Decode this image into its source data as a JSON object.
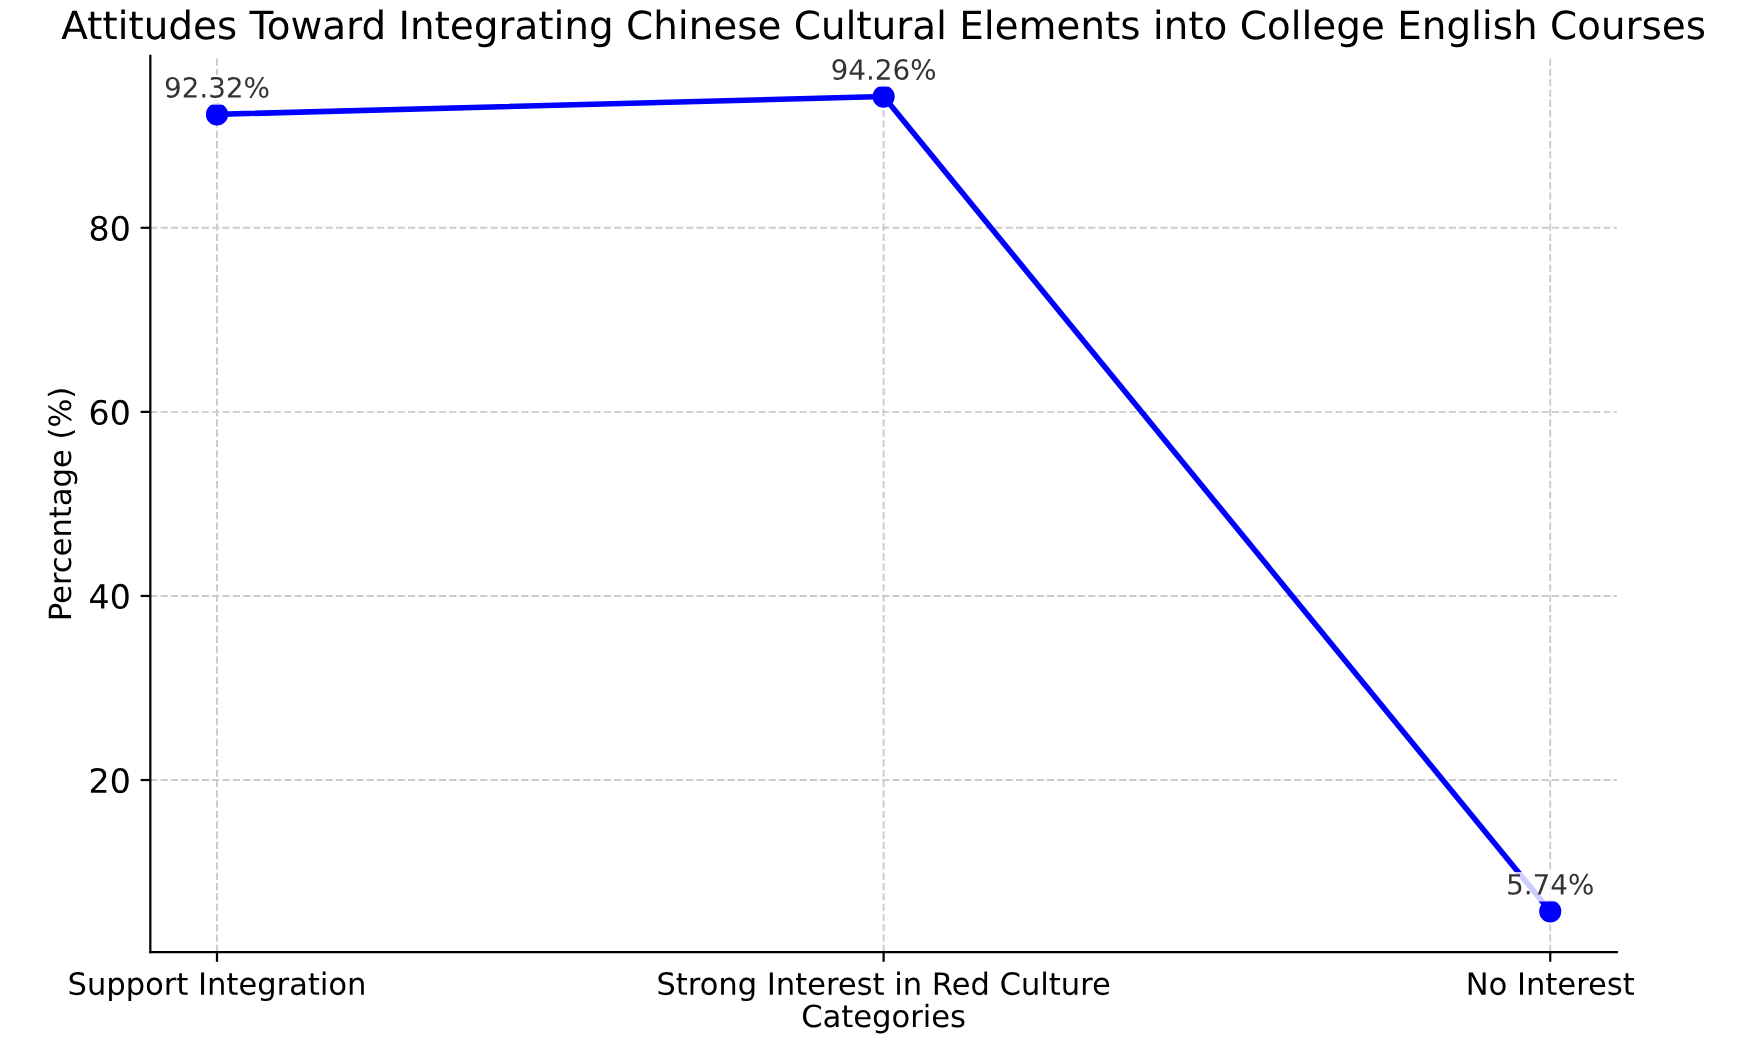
{
  "chart_data": {
    "type": "line",
    "title": "Attitudes Toward Integrating Chinese Cultural Elements into College English Courses",
    "xlabel": "Categories",
    "ylabel": "Percentage (%)",
    "categories": [
      "Support Integration",
      "Strong Interest in Red Culture",
      "No Interest"
    ],
    "series": [
      {
        "color": "#0000ff",
        "values": [
          92.32,
          94.26,
          5.74
        ],
        "value_labels": [
          "92.32%",
          "94.26%",
          "5.74%"
        ]
      }
    ],
    "ylim": [
      1.31,
      98.69
    ],
    "yticks": [
      20,
      40,
      60,
      80
    ],
    "grid": true,
    "marker": "circle",
    "line_style": "solid"
  }
}
